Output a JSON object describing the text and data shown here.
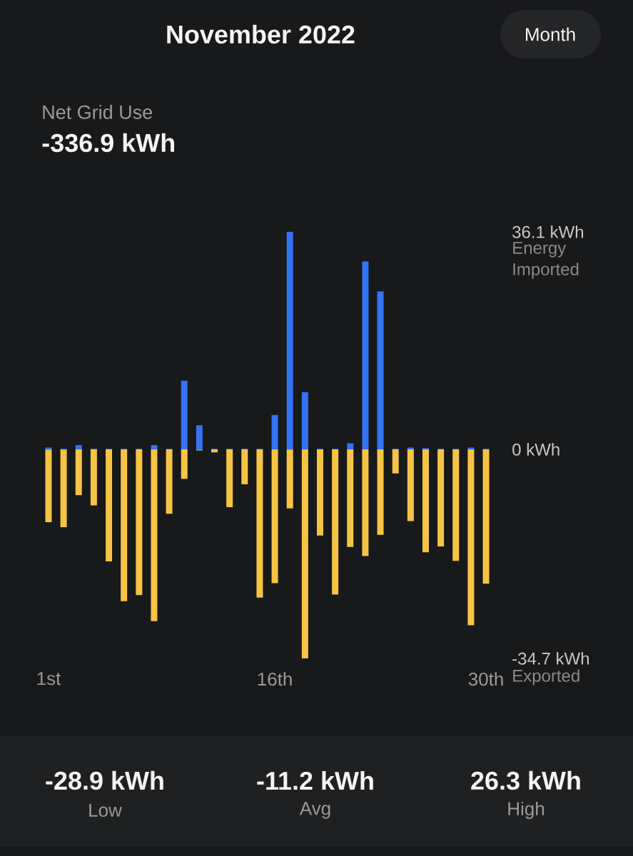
{
  "chart_data": {
    "type": "bar",
    "title": "November 2022",
    "categories": [
      "1st",
      null,
      null,
      null,
      null,
      null,
      null,
      null,
      null,
      null,
      null,
      null,
      null,
      null,
      null,
      "16th",
      null,
      null,
      null,
      null,
      null,
      null,
      null,
      null,
      null,
      null,
      null,
      null,
      null,
      "30th"
    ],
    "series": [
      {
        "color": "#3373f4",
        "values": [
          0.3,
          0.1,
          0.7,
          0.1,
          0.1,
          0.1,
          0.1,
          0.7,
          0.1,
          11.4,
          4.0,
          0.1,
          0.1,
          0.1,
          0.1,
          5.7,
          36.1,
          9.5,
          0.1,
          0.1,
          1.0,
          31.2,
          26.2,
          0.1,
          0.3,
          0.2,
          0.1,
          0.1,
          0.3,
          0.1
        ]
      },
      {
        "color": "#f6c445",
        "values": [
          -12.1,
          -12.9,
          -7.6,
          -9.3,
          -18.6,
          -25.2,
          -24.2,
          -28.5,
          -10.7,
          -4.9,
          null,
          -0.5,
          -9.6,
          -5.8,
          -24.6,
          -22.2,
          -9.8,
          -34.7,
          -14.3,
          -24.1,
          -16.2,
          -17.7,
          -14.2,
          -4.0,
          -11.9,
          -17.1,
          -16.1,
          -18.5,
          -29.2,
          -22.3
        ]
      },
      {
        "color": "#55c06a",
        "values": [
          -0.1,
          -0.1,
          null,
          null,
          null,
          null,
          null,
          null,
          null,
          null,
          -0.2,
          null,
          null,
          null,
          null,
          null,
          -0.1,
          null,
          null,
          null,
          null,
          null,
          null,
          null,
          null,
          null,
          null,
          null,
          null,
          null
        ]
      }
    ],
    "ylim": [
      -34.7,
      36.1
    ],
    "yticks": [
      {
        "value": 36.1,
        "label": "36.1 kWh"
      },
      {
        "value": 0,
        "label": "0 kWh"
      },
      {
        "value": -34.7,
        "label": "-34.7 kWh"
      }
    ],
    "annotations": [
      "Energy Imported",
      "Exported",
      "Net Grid Use",
      "-336.9 kWh",
      "Month",
      "-28.9 kWh",
      "Low",
      "-11.2 kWh",
      "Avg",
      "26.3 kWh",
      "High"
    ]
  }
}
